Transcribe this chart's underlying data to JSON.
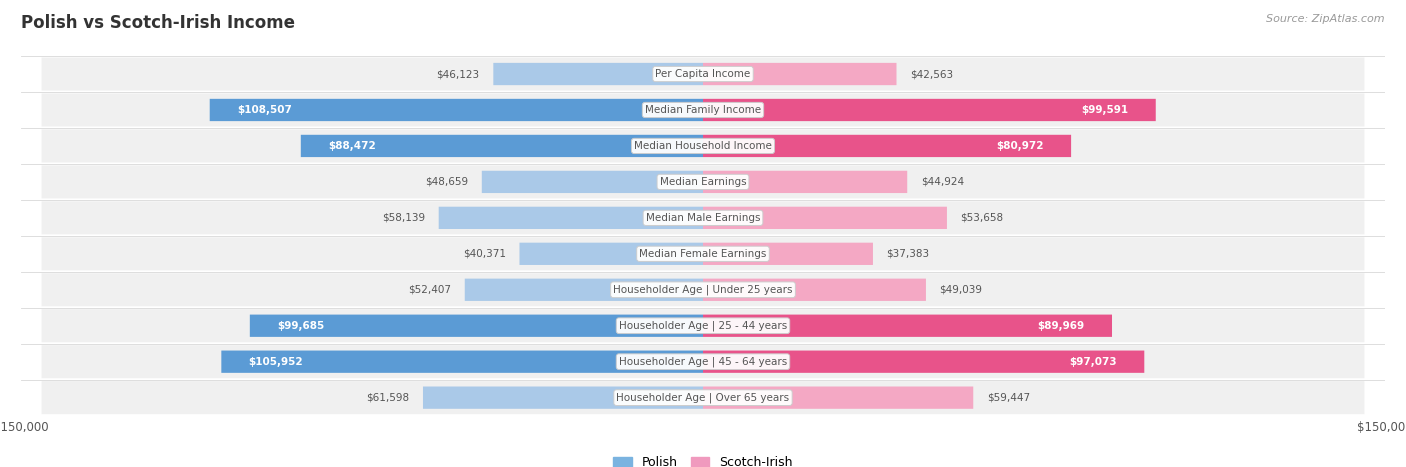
{
  "title": "Polish vs Scotch-Irish Income",
  "source": "Source: ZipAtlas.com",
  "max_value": 150000,
  "categories": [
    "Per Capita Income",
    "Median Family Income",
    "Median Household Income",
    "Median Earnings",
    "Median Male Earnings",
    "Median Female Earnings",
    "Householder Age | Under 25 years",
    "Householder Age | 25 - 44 years",
    "Householder Age | 45 - 64 years",
    "Householder Age | Over 65 years"
  ],
  "polish_values": [
    46123,
    108507,
    88472,
    48659,
    58139,
    40371,
    52407,
    99685,
    105952,
    61598
  ],
  "scotch_irish_values": [
    42563,
    99591,
    80972,
    44924,
    53658,
    37383,
    49039,
    89969,
    97073,
    59447
  ],
  "polish_labels": [
    "$46,123",
    "$108,507",
    "$88,472",
    "$48,659",
    "$58,139",
    "$40,371",
    "$52,407",
    "$99,685",
    "$105,952",
    "$61,598"
  ],
  "scotch_irish_labels": [
    "$42,563",
    "$99,591",
    "$80,972",
    "$44,924",
    "$53,658",
    "$37,383",
    "$49,039",
    "$89,969",
    "$97,073",
    "$59,447"
  ],
  "polish_color_dark": "#5b9bd5",
  "polish_color_light": "#aac9e8",
  "scotch_irish_color_dark": "#e8538a",
  "scotch_irish_color_light": "#f4a8c4",
  "row_bg": "#f0f0f0",
  "label_color_inside": "#ffffff",
  "label_color_outside": "#555555",
  "center_label_bg": "#ffffff",
  "center_label_color": "#555555",
  "title_color": "#333333",
  "source_color": "#999999",
  "legend_polish_color": "#7ab3e0",
  "legend_scotch_color": "#f09abe",
  "inside_threshold": 75000
}
